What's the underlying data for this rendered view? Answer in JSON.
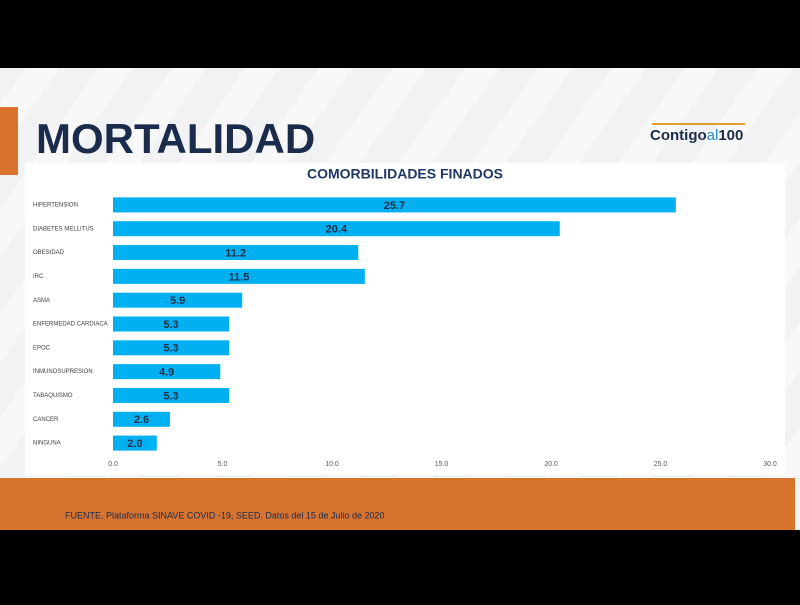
{
  "slide_title": "MORTALIDAD",
  "logo": [
    "Contigo",
    "al",
    "100"
  ],
  "source": "FUENTE. Plataforma SINAVE COVID -19, SEED. Datos del 15 de Julio de 2020",
  "chart_data": {
    "type": "hbar",
    "title": "COMORBILIDADES FINADOS",
    "categories": [
      "HIPERTENSION",
      "DIABETES MELLITUS",
      "OBESIDAD",
      "IRC",
      "ASMA",
      "ENFERMEDAD CARDIACA",
      "EPOC",
      "INMUNOSUPRESION",
      "TABAQUISMO",
      "CANCER",
      "NINGUNA"
    ],
    "values": [
      25.7,
      20.4,
      11.2,
      11.5,
      5.9,
      5.3,
      5.3,
      4.9,
      5.3,
      2.6,
      2.0
    ],
    "value_labels": [
      "25.7",
      "20.4",
      "11.2",
      "11.5",
      "5.9",
      "5.3",
      "5.3",
      "4.9",
      "5.3",
      "2.6",
      "2.0"
    ],
    "color": "#00b0f0",
    "xlim": [
      0,
      30
    ],
    "xticks": [
      {
        "value": 0,
        "label": "0.0"
      },
      {
        "value": 5,
        "label": "5.0"
      },
      {
        "value": 10,
        "label": "10.0"
      },
      {
        "value": 15,
        "label": "15.0"
      },
      {
        "value": 20,
        "label": "20.0"
      },
      {
        "value": 25,
        "label": "25.0"
      },
      {
        "value": 30,
        "label": "30.0"
      }
    ],
    "grid": false
  }
}
